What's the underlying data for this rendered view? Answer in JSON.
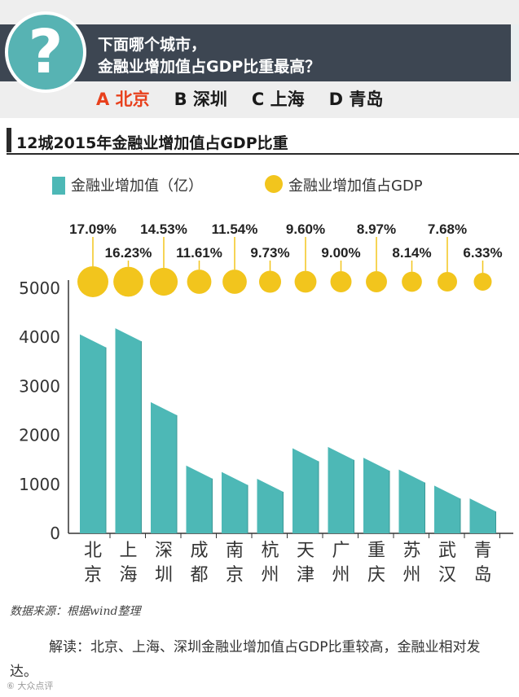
{
  "question": {
    "mark": "?",
    "line1": "下面哪个城市，",
    "line2": "金融业增加值占GDP比重最高？",
    "options": [
      {
        "label": "A 北京",
        "correct": true
      },
      {
        "label": "B 深圳",
        "correct": false
      },
      {
        "label": "C 上海",
        "correct": false
      },
      {
        "label": "D 青岛",
        "correct": false
      }
    ]
  },
  "section": {
    "title": "12城2015年金融业增加值占GDP比重"
  },
  "legend": {
    "bar_label": "金融业增加值（亿）",
    "dot_label": "金融业增加值占GDP"
  },
  "colors": {
    "bar": "#4db8b6",
    "bar_shade": "#3b9896",
    "dot": "#f2c51d",
    "accent": "#e8401c",
    "header": "#3d4652"
  },
  "chart_data": {
    "type": "bar",
    "title": "12城2015年金融业增加值占GDP比重",
    "categories": [
      "北京",
      "上海",
      "深圳",
      "成都",
      "南京",
      "杭州",
      "天津",
      "广州",
      "重庆",
      "苏州",
      "武汉",
      "青岛"
    ],
    "series": [
      {
        "name": "金融业增加值（亿）",
        "values": [
          3926,
          4052,
          2543,
          1251,
          1120,
          980,
          1604,
          1629,
          1410,
          1170,
          840,
          580
        ]
      },
      {
        "name": "金融业增加值占GDP",
        "values": [
          17.09,
          16.23,
          14.53,
          11.61,
          11.54,
          9.73,
          9.6,
          9.0,
          8.97,
          8.14,
          7.68,
          6.33
        ]
      }
    ],
    "pct_labels": [
      "17.09%",
      "16.23%",
      "14.53%",
      "11.61%",
      "11.54%",
      "9.73%",
      "9.60%",
      "9.00%",
      "8.97%",
      "8.14%",
      "7.68%",
      "6.33%"
    ],
    "yticks": [
      "0",
      "1000",
      "2000",
      "3000",
      "4000",
      "5000"
    ],
    "ylim": [
      0,
      5000
    ],
    "xlabel": "",
    "ylabel": "",
    "grid": false
  },
  "source": "数据来源：根据wind整理",
  "note": "解读：北京、上海、深圳金融业增加值占GDP比重较高，金融业相对发达。",
  "watermark": "⑥ 大众点评"
}
